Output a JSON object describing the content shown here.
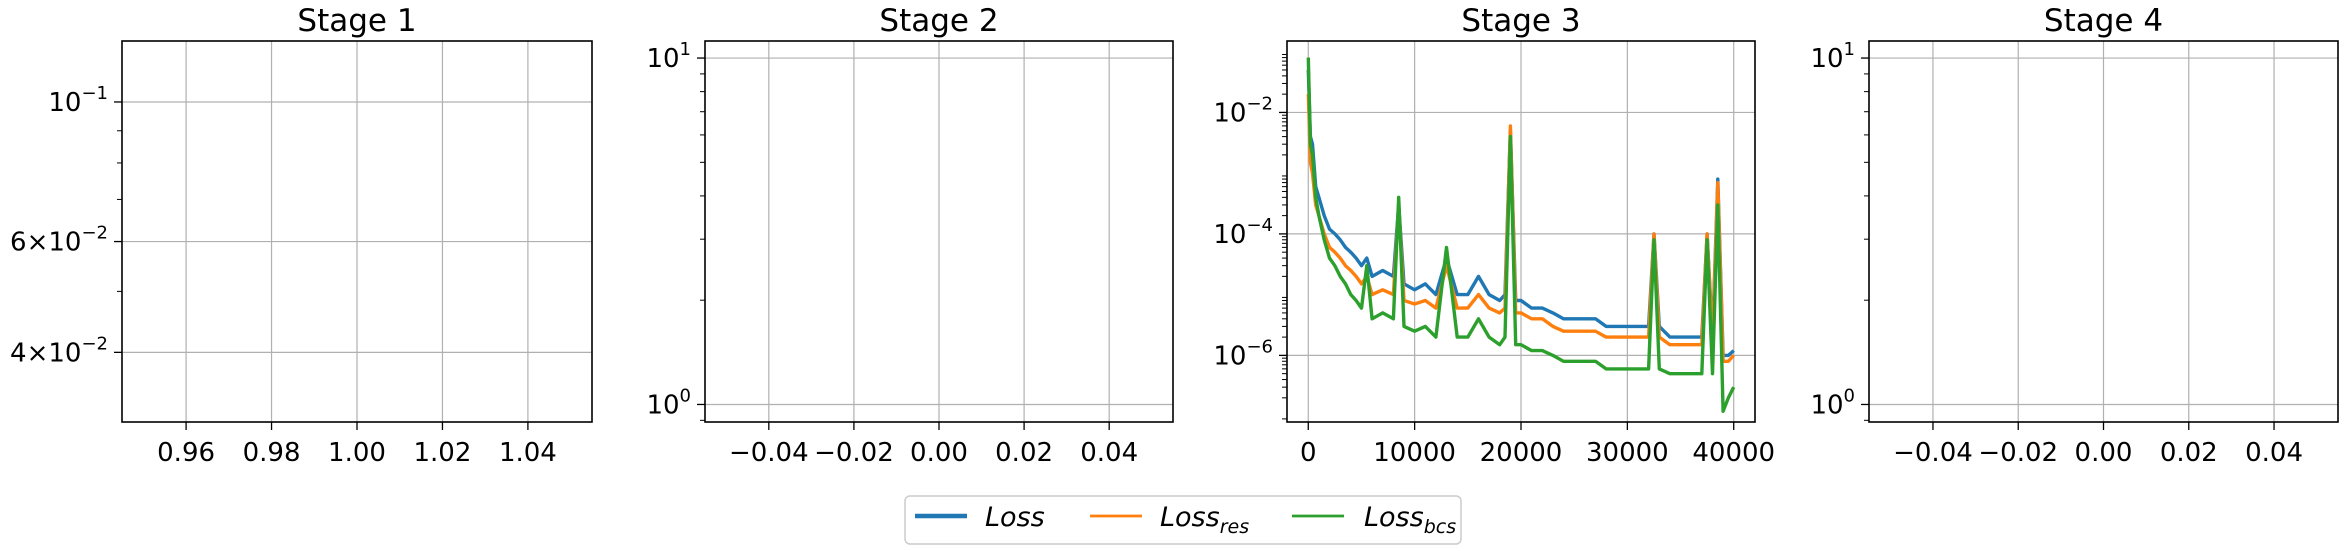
{
  "chart_data": [
    {
      "type": "line",
      "title": "Stage 1",
      "yscale": "log",
      "xlim": [
        0.945,
        1.055
      ],
      "ylim": [
        0.031,
        0.125
      ],
      "grid": true,
      "xticks": [
        {
          "value": 0.96,
          "label": "0.96"
        },
        {
          "value": 0.98,
          "label": "0.98"
        },
        {
          "value": 1.0,
          "label": "1.00"
        },
        {
          "value": 1.02,
          "label": "1.02"
        },
        {
          "value": 1.04,
          "label": "1.04"
        }
      ],
      "yticks": [
        {
          "value": 0.1,
          "label": "10^-1",
          "base": "10",
          "mant": "",
          "exp": "−1"
        },
        {
          "value": 0.06,
          "label": "6×10^-2",
          "base": "10",
          "mant": "6×",
          "exp": "−2"
        },
        {
          "value": 0.04,
          "label": "4×10^-2",
          "base": "10",
          "mant": "4×",
          "exp": "−2"
        }
      ],
      "series": []
    },
    {
      "type": "line",
      "title": "Stage 2",
      "yscale": "log",
      "xlim": [
        -0.055,
        0.055
      ],
      "ylim": [
        0.89,
        11.2
      ],
      "grid": true,
      "xticks": [
        {
          "value": -0.04,
          "label": "−0.04"
        },
        {
          "value": -0.02,
          "label": "−0.02"
        },
        {
          "value": 0.0,
          "label": "0.00"
        },
        {
          "value": 0.02,
          "label": "0.02"
        },
        {
          "value": 0.04,
          "label": "0.04"
        }
      ],
      "yticks": [
        {
          "value": 10,
          "label": "10^1",
          "base": "10",
          "mant": "",
          "exp": "1"
        },
        {
          "value": 1,
          "label": "10^0",
          "base": "10",
          "mant": "",
          "exp": "0"
        }
      ],
      "series": []
    },
    {
      "type": "line",
      "title": "Stage 3",
      "yscale": "log",
      "xlim": [
        -2000,
        42000
      ],
      "ylim": [
        8e-08,
        0.15
      ],
      "grid": true,
      "xticks": [
        {
          "value": 0,
          "label": "0"
        },
        {
          "value": 10000,
          "label": "10000"
        },
        {
          "value": 20000,
          "label": "20000"
        },
        {
          "value": 30000,
          "label": "30000"
        },
        {
          "value": 40000,
          "label": "40000"
        }
      ],
      "yticks": [
        {
          "value": 0.01,
          "label": "10^-2",
          "base": "10",
          "mant": "",
          "exp": "−2"
        },
        {
          "value": 0.0001,
          "label": "10^-4",
          "base": "10",
          "mant": "",
          "exp": "−4"
        },
        {
          "value": 1e-06,
          "label": "10^-6",
          "base": "10",
          "mant": "",
          "exp": "−6"
        }
      ],
      "series": [
        {
          "name": "Loss",
          "color": "#1f77b4",
          "x": [
            0,
            200,
            400,
            700,
            1000,
            1500,
            2000,
            2500,
            3000,
            3500,
            4000,
            4500,
            5000,
            5500,
            6000,
            7000,
            8000,
            8500,
            9000,
            10000,
            11000,
            12000,
            13000,
            14000,
            15000,
            16000,
            17000,
            18000,
            18500,
            19000,
            19500,
            20000,
            21000,
            22000,
            23000,
            24000,
            25000,
            26000,
            27000,
            28000,
            29000,
            30000,
            31000,
            32000,
            32500,
            33000,
            34000,
            35000,
            36000,
            37000,
            37500,
            38000,
            38500,
            39000,
            39500,
            40000
          ],
          "y": [
            0.05,
            0.004,
            0.003,
            0.0006,
            0.0004,
            0.0002,
            0.00012,
            0.0001,
            8e-05,
            6e-05,
            5e-05,
            4e-05,
            3e-05,
            4e-05,
            2e-05,
            2.5e-05,
            2e-05,
            0.0003,
            1.5e-05,
            1.2e-05,
            1.5e-05,
            1e-05,
            4e-05,
            1e-05,
            1e-05,
            2e-05,
            1e-05,
            8e-06,
            1e-05,
            0.005,
            8e-06,
            8e-06,
            6e-06,
            6e-06,
            5e-06,
            4e-06,
            4e-06,
            4e-06,
            4e-06,
            3e-06,
            3e-06,
            3e-06,
            3e-06,
            3e-06,
            0.0001,
            3e-06,
            2e-06,
            2e-06,
            2e-06,
            2e-06,
            0.0001,
            2e-06,
            0.0008,
            1e-06,
            1e-06,
            1.2e-06
          ]
        },
        {
          "name": "Loss_res",
          "color": "#ff7f0e",
          "x": [
            0,
            200,
            400,
            700,
            1000,
            1500,
            2000,
            2500,
            3000,
            3500,
            4000,
            4500,
            5000,
            5500,
            6000,
            7000,
            8000,
            8500,
            9000,
            10000,
            11000,
            12000,
            13000,
            14000,
            15000,
            16000,
            17000,
            18000,
            18500,
            19000,
            19500,
            20000,
            21000,
            22000,
            23000,
            24000,
            25000,
            26000,
            27000,
            28000,
            29000,
            30000,
            31000,
            32000,
            32500,
            33000,
            34000,
            35000,
            36000,
            37000,
            37500,
            38000,
            38500,
            39000,
            39500,
            40000
          ],
          "y": [
            0.02,
            0.0015,
            0.001,
            0.0003,
            0.0002,
            0.0001,
            6e-05,
            5e-05,
            4e-05,
            3e-05,
            2.5e-05,
            2e-05,
            1.5e-05,
            2e-05,
            1e-05,
            1.2e-05,
            1e-05,
            0.0003,
            8e-06,
            7e-06,
            8e-06,
            6e-06,
            3e-05,
            6e-06,
            6e-06,
            1e-05,
            6e-06,
            5e-06,
            6e-06,
            0.006,
            5e-06,
            5e-06,
            4e-06,
            4e-06,
            3e-06,
            2.5e-06,
            2.5e-06,
            2.5e-06,
            2.5e-06,
            2e-06,
            2e-06,
            2e-06,
            2e-06,
            2e-06,
            0.0001,
            2e-06,
            1.5e-06,
            1.5e-06,
            1.5e-06,
            1.5e-06,
            0.0001,
            1.5e-06,
            0.0007,
            8e-07,
            8e-07,
            1e-06
          ]
        },
        {
          "name": "Loss_bcs",
          "color": "#2ca02c",
          "x": [
            0,
            200,
            400,
            700,
            1000,
            1500,
            2000,
            2500,
            3000,
            3500,
            4000,
            4500,
            5000,
            5500,
            6000,
            7000,
            8000,
            8500,
            9000,
            10000,
            11000,
            12000,
            13000,
            14000,
            15000,
            16000,
            17000,
            18000,
            18500,
            19000,
            19500,
            20000,
            21000,
            22000,
            23000,
            24000,
            25000,
            26000,
            27000,
            28000,
            29000,
            30000,
            31000,
            32000,
            32500,
            33000,
            34000,
            35000,
            36000,
            37000,
            37500,
            38000,
            38500,
            39000,
            39500,
            40000
          ],
          "y": [
            0.08,
            0.003,
            0.002,
            0.0004,
            0.0002,
            8e-05,
            4e-05,
            3e-05,
            2e-05,
            1.5e-05,
            1e-05,
            8e-06,
            6e-06,
            3e-05,
            4e-06,
            5e-06,
            4e-06,
            0.0004,
            3e-06,
            2.5e-06,
            3e-06,
            2e-06,
            6e-05,
            2e-06,
            2e-06,
            4e-06,
            2e-06,
            1.5e-06,
            2e-06,
            0.004,
            1.5e-06,
            1.5e-06,
            1.2e-06,
            1.2e-06,
            1e-06,
            8e-07,
            8e-07,
            8e-07,
            8e-07,
            6e-07,
            6e-07,
            6e-07,
            6e-07,
            6e-07,
            8e-05,
            6e-07,
            5e-07,
            5e-07,
            5e-07,
            5e-07,
            8e-05,
            5e-07,
            0.0003,
            1.2e-07,
            2e-07,
            3e-07
          ]
        }
      ]
    },
    {
      "type": "line",
      "title": "Stage 4",
      "yscale": "log",
      "xlim": [
        -0.055,
        0.055
      ],
      "ylim": [
        0.89,
        11.2
      ],
      "grid": true,
      "xticks": [
        {
          "value": -0.04,
          "label": "−0.04"
        },
        {
          "value": -0.02,
          "label": "−0.02"
        },
        {
          "value": 0.0,
          "label": "0.00"
        },
        {
          "value": 0.02,
          "label": "0.02"
        },
        {
          "value": 0.04,
          "label": "0.04"
        }
      ],
      "yticks": [
        {
          "value": 10,
          "label": "10^1",
          "base": "10",
          "mant": "",
          "exp": "1"
        },
        {
          "value": 1,
          "label": "10^0",
          "base": "10",
          "mant": "",
          "exp": "0"
        }
      ],
      "series": []
    }
  ],
  "legend": {
    "position": "bottom-center",
    "items": [
      {
        "label": "Loss",
        "main": "Loss",
        "sub": "",
        "color": "#1f77b4"
      },
      {
        "label": "Loss_res",
        "main": "Loss",
        "sub": "res",
        "color": "#ff7f0e"
      },
      {
        "label": "Loss_bcs",
        "main": "Loss",
        "sub": "bcs",
        "color": "#2ca02c"
      }
    ]
  }
}
